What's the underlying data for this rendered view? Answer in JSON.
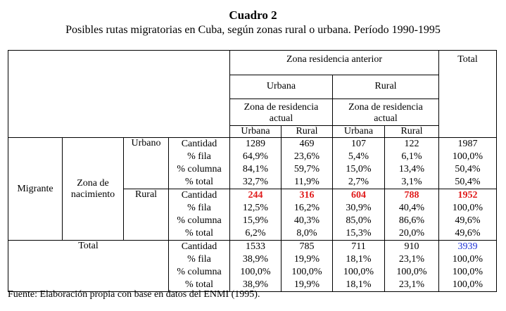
{
  "title": "Cuadro 2",
  "subtitle": "Posibles rutas migratorias en Cuba, según zonas rural o urbana. Período 1990-1995",
  "header": {
    "zona_anterior": "Zona residencia anterior",
    "total": "Total",
    "urbana": "Urbana",
    "rural": "Rural",
    "zona_actual": "Zona de residencia actual",
    "sub_urbana": "Urbana",
    "sub_rural": "Rural"
  },
  "row_headers": {
    "migrante": "Migrante",
    "zona_nacimiento": "Zona de nacimiento",
    "urbano": "Urbano",
    "rural": "Rural",
    "total": "Total"
  },
  "measures": [
    "Cantidad",
    "% fila",
    "% columna",
    "% total"
  ],
  "groups": {
    "urbano": {
      "uu": [
        "1289",
        "64,9%",
        "84,1%",
        "32,7%"
      ],
      "ur": [
        "469",
        "23,6%",
        "59,7%",
        "11,9%"
      ],
      "ru": [
        "107",
        "5,4%",
        "15,0%",
        "2,7%"
      ],
      "rr": [
        "122",
        "6,1%",
        "13,4%",
        "3,1%"
      ],
      "tot": [
        "1987",
        "100,0%",
        "50,4%",
        "50,4%"
      ]
    },
    "rural": {
      "uu": [
        "244",
        "12,5%",
        "15,9%",
        "6,2%"
      ],
      "ur": [
        "316",
        "16,2%",
        "40,3%",
        "8,0%"
      ],
      "ru": [
        "604",
        "30,9%",
        "85,0%",
        "15,3%"
      ],
      "rr": [
        "788",
        "40,4%",
        "86,6%",
        "20,0%"
      ],
      "tot": [
        "1952",
        "100,0%",
        "49,6%",
        "49,6%"
      ]
    },
    "total": {
      "uu": [
        "1533",
        "38,9%",
        "100,0%",
        "38,9%"
      ],
      "ur": [
        "785",
        "19,9%",
        "100,0%",
        "19,9%"
      ],
      "ru": [
        "711",
        "18,1%",
        "100,0%",
        "18,1%"
      ],
      "rr": [
        "910",
        "23,1%",
        "100,0%",
        "23,1%"
      ],
      "tot": [
        "3939",
        "100,0%",
        "100,0%",
        "100,0%"
      ]
    }
  },
  "footer": "Fuente: Elaboración propia con base en datos del ENMI (1995).",
  "colors": {
    "highlight_red": "#e01b1b",
    "highlight_blue": "#1a2fd6"
  }
}
